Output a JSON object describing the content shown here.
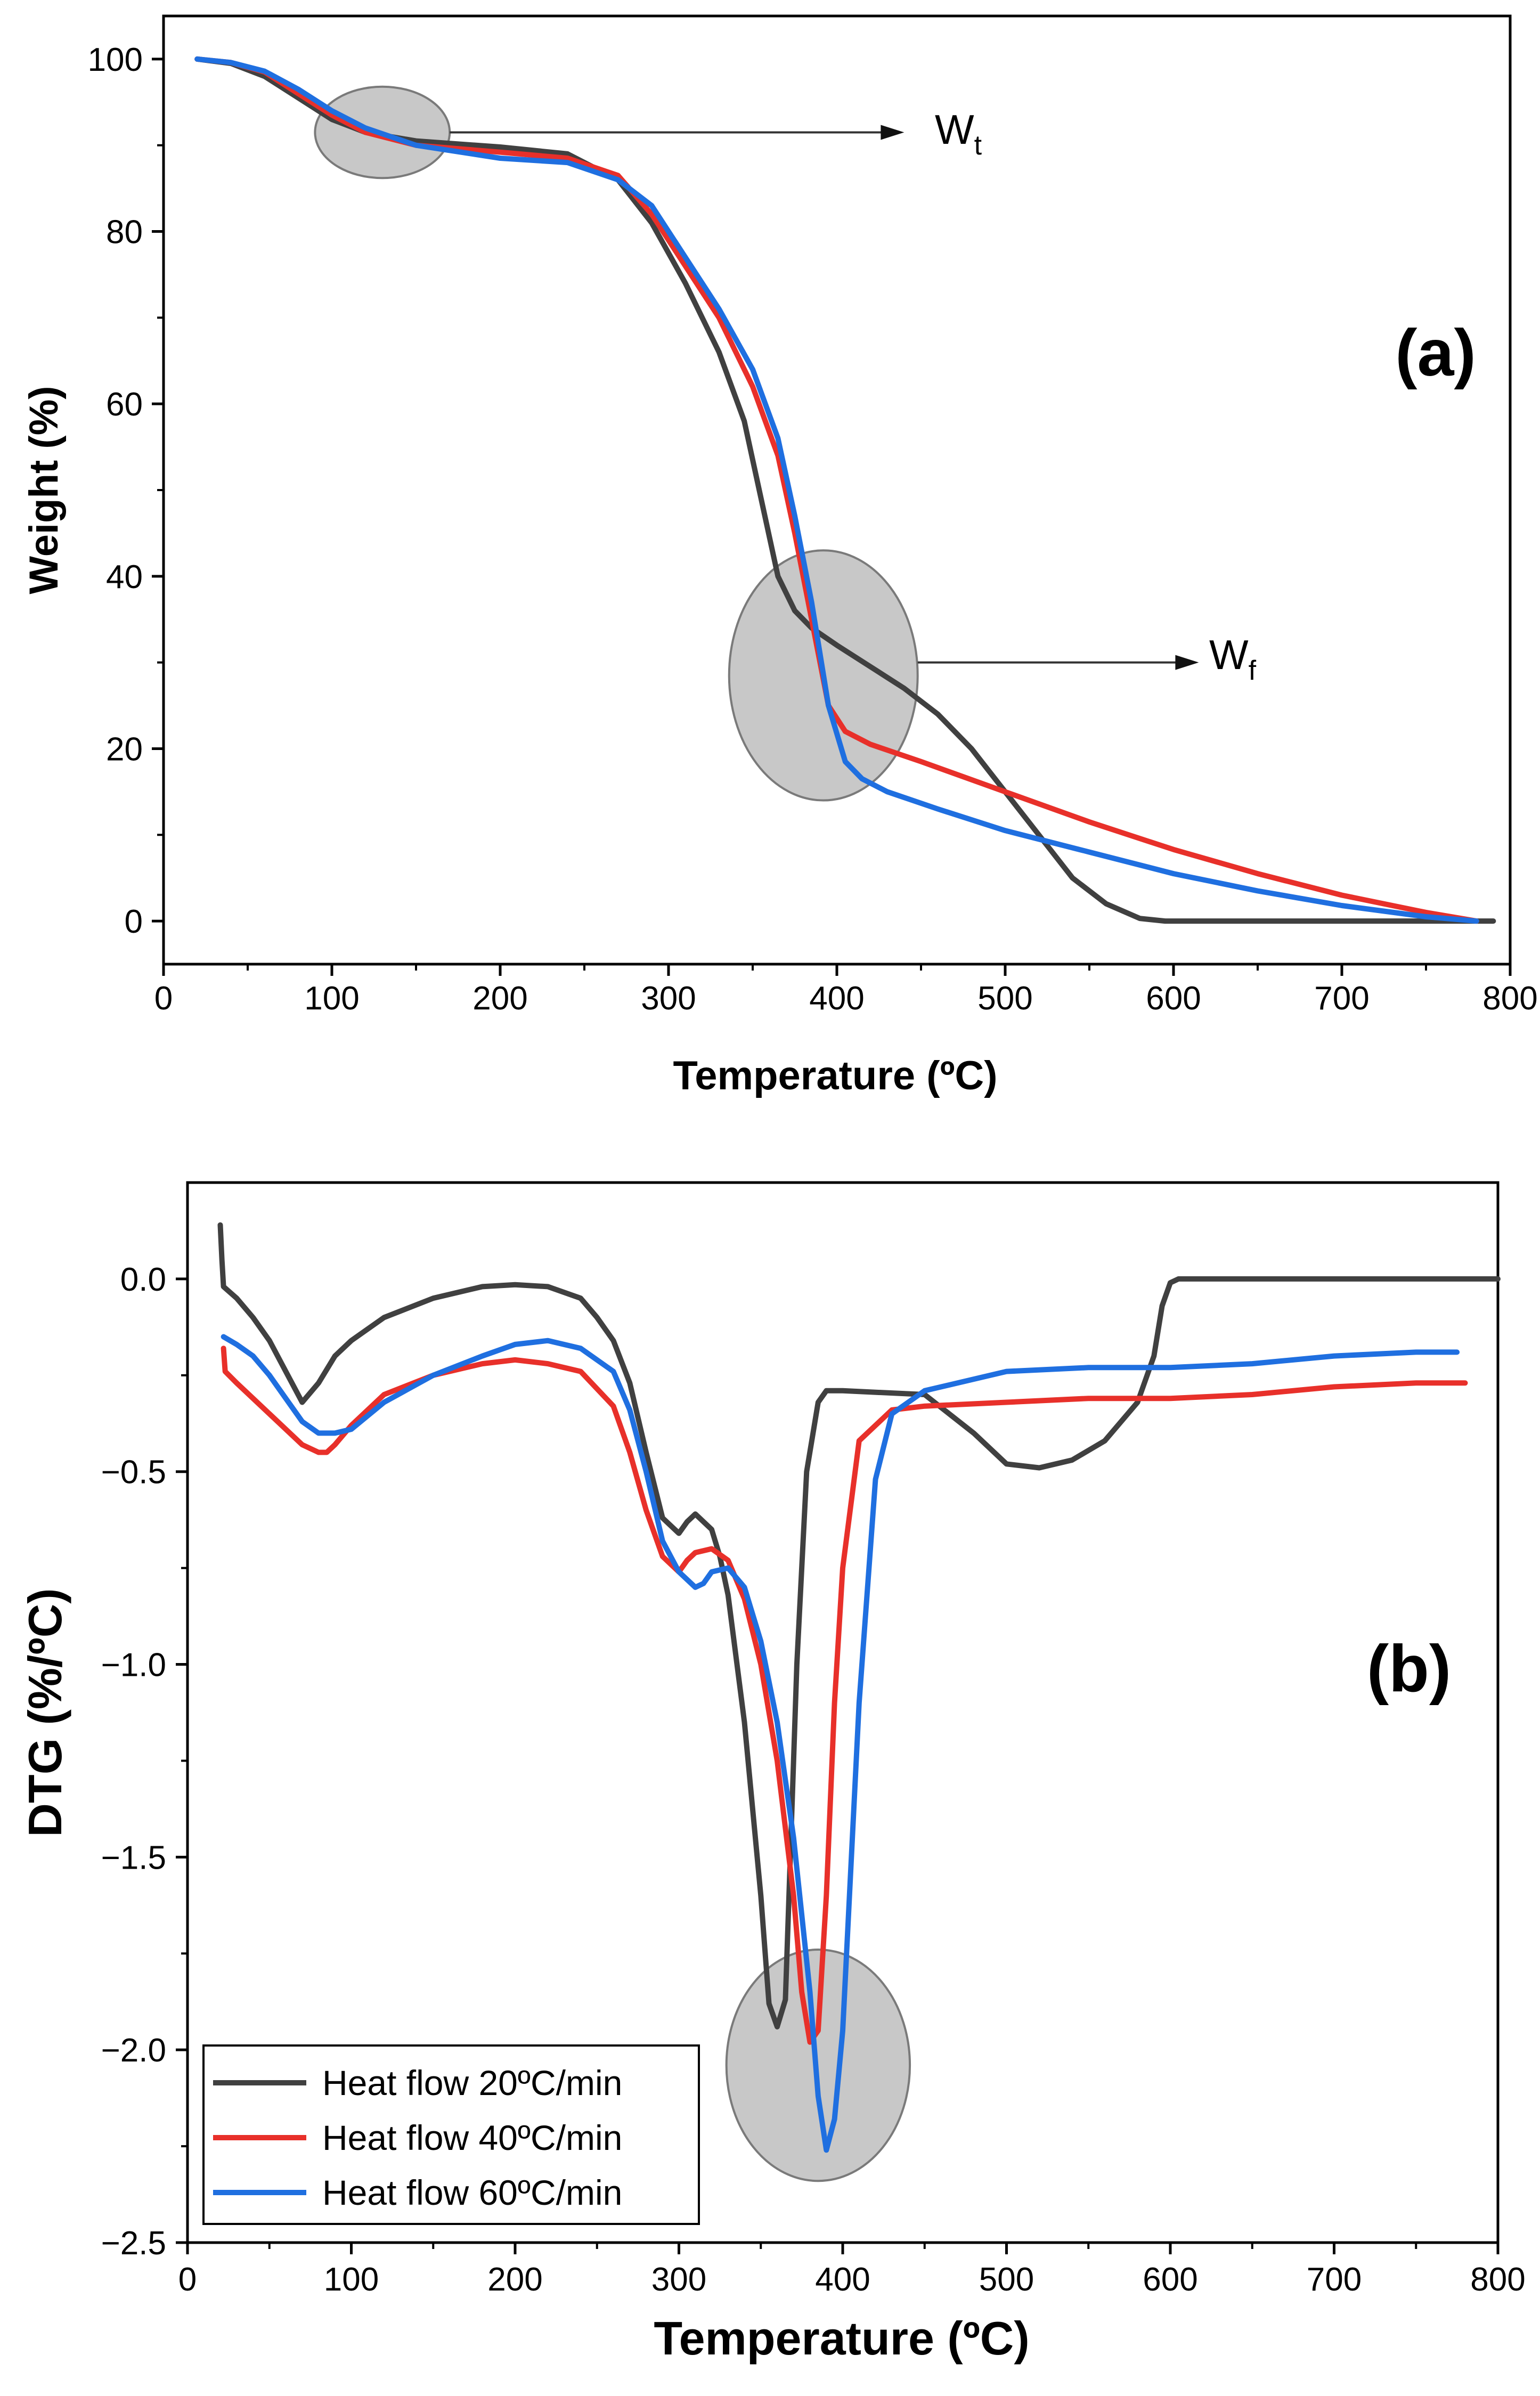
{
  "chart_data": [
    {
      "type": "line",
      "panel_label": "(a)",
      "xlabel": "Temperature (ºC)",
      "ylabel": "Weight (%)",
      "xlim": [
        0,
        800
      ],
      "ylim": [
        -5,
        105
      ],
      "xticks": [
        0,
        100,
        200,
        300,
        400,
        500,
        600,
        700,
        800
      ],
      "yticks": [
        0,
        20,
        40,
        60,
        80,
        100
      ],
      "grid": false,
      "annotations": [
        {
          "label": "W",
          "sub": "t",
          "ellipse_center": [
            130,
            91.5
          ],
          "ellipse_radii": [
            40,
            5.3
          ],
          "arrow_from": [
            170,
            91.5
          ],
          "arrow_to": [
            440,
            91.5
          ]
        },
        {
          "label": "W",
          "sub": "f",
          "ellipse_center": [
            392,
            28.5
          ],
          "ellipse_radii": [
            56,
            14.5
          ],
          "arrow_from": [
            448,
            30
          ],
          "arrow_to": [
            615,
            30
          ]
        }
      ],
      "series": [
        {
          "name": "Heat flow 20ºC/min",
          "color": "#404040",
          "x": [
            20,
            40,
            60,
            80,
            100,
            120,
            150,
            200,
            240,
            270,
            290,
            310,
            330,
            345,
            355,
            365,
            375,
            385,
            400,
            420,
            440,
            460,
            480,
            500,
            520,
            540,
            560,
            580,
            595,
            600,
            650,
            700,
            750,
            790
          ],
          "y": [
            100,
            99.5,
            98,
            95.5,
            93,
            91.5,
            90.5,
            89.8,
            89,
            86,
            81,
            74,
            66,
            58,
            49,
            40,
            36,
            34,
            32,
            29.5,
            27,
            24,
            20,
            15,
            10,
            5,
            2,
            0.3,
            0,
            0,
            0,
            0,
            0,
            0
          ]
        },
        {
          "name": "Heat flow 40ºC/min",
          "color": "#e8302a",
          "x": [
            20,
            40,
            60,
            80,
            100,
            120,
            150,
            200,
            240,
            270,
            290,
            310,
            330,
            350,
            365,
            375,
            385,
            395,
            405,
            420,
            450,
            500,
            550,
            600,
            650,
            700,
            750,
            780
          ],
          "y": [
            100,
            99.6,
            98.5,
            96,
            93.5,
            91.5,
            90,
            89.2,
            88.5,
            86.5,
            82,
            76,
            70,
            62,
            54,
            45,
            35,
            25,
            22,
            20.5,
            18.5,
            15,
            11.5,
            8.3,
            5.5,
            3,
            1,
            0
          ]
        },
        {
          "name": "Heat flow 60ºC/min",
          "color": "#1f6fe0",
          "x": [
            20,
            40,
            60,
            80,
            100,
            120,
            150,
            200,
            240,
            270,
            290,
            310,
            330,
            350,
            365,
            375,
            385,
            395,
            405,
            415,
            430,
            460,
            500,
            550,
            600,
            650,
            700,
            750,
            780
          ],
          "y": [
            100,
            99.6,
            98.6,
            96.5,
            94,
            92,
            90,
            88.5,
            88,
            86,
            83,
            77,
            71,
            64,
            56,
            47,
            37,
            25,
            18.5,
            16.5,
            15,
            13,
            10.5,
            8,
            5.5,
            3.5,
            1.8,
            0.5,
            0
          ]
        }
      ]
    },
    {
      "type": "line",
      "panel_label": "(b)",
      "xlabel": "Temperature (ºC)",
      "ylabel": "DTG (%/ºC)",
      "xlim": [
        0,
        800
      ],
      "ylim": [
        -2.5,
        0.25
      ],
      "xticks": [
        0,
        100,
        200,
        300,
        400,
        500,
        600,
        700,
        800
      ],
      "yticks": [
        0.0,
        -0.5,
        -1.0,
        -1.5,
        -2.0,
        -2.5
      ],
      "ytick_labels": [
        "0.0",
        "−0.5",
        "−1.0",
        "−1.5",
        "−2.0",
        "−2.5"
      ],
      "grid": false,
      "legend_position": "bottom-left",
      "annotations": [
        {
          "ellipse_center": [
            385,
            -2.04
          ],
          "ellipse_radii": [
            56,
            0.3
          ]
        }
      ],
      "series": [
        {
          "name": "Heat flow 20ºC/min",
          "color": "#404040",
          "x": [
            20,
            21,
            22,
            30,
            40,
            50,
            60,
            70,
            80,
            90,
            100,
            120,
            150,
            180,
            200,
            220,
            240,
            250,
            260,
            270,
            280,
            290,
            300,
            305,
            310,
            320,
            325,
            330,
            340,
            350,
            355,
            360,
            365,
            368,
            372,
            378,
            385,
            390,
            400,
            450,
            480,
            500,
            520,
            540,
            560,
            580,
            590,
            595,
            600,
            605,
            650,
            700,
            750,
            800
          ],
          "y": [
            0.14,
            0.05,
            -0.02,
            -0.05,
            -0.1,
            -0.16,
            -0.24,
            -0.32,
            -0.27,
            -0.2,
            -0.16,
            -0.1,
            -0.05,
            -0.02,
            -0.015,
            -0.02,
            -0.05,
            -0.1,
            -0.16,
            -0.27,
            -0.45,
            -0.62,
            -0.66,
            -0.63,
            -0.61,
            -0.65,
            -0.72,
            -0.82,
            -1.15,
            -1.6,
            -1.88,
            -1.94,
            -1.87,
            -1.5,
            -1.0,
            -0.5,
            -0.32,
            -0.29,
            -0.29,
            -0.3,
            -0.4,
            -0.48,
            -0.49,
            -0.47,
            -0.42,
            -0.32,
            -0.2,
            -0.07,
            -0.01,
            0.0,
            0.0,
            0.0,
            0.0,
            0.0
          ]
        },
        {
          "name": "Heat flow 40ºC/min",
          "color": "#e8302a",
          "x": [
            22,
            23,
            30,
            40,
            50,
            60,
            70,
            80,
            85,
            90,
            100,
            120,
            150,
            180,
            200,
            220,
            240,
            260,
            270,
            280,
            290,
            300,
            305,
            310,
            320,
            330,
            340,
            350,
            360,
            370,
            375,
            380,
            385,
            390,
            395,
            400,
            410,
            430,
            450,
            500,
            550,
            600,
            650,
            700,
            750,
            780
          ],
          "y": [
            -0.18,
            -0.24,
            -0.27,
            -0.31,
            -0.35,
            -0.39,
            -0.43,
            -0.45,
            -0.45,
            -0.43,
            -0.38,
            -0.3,
            -0.25,
            -0.22,
            -0.21,
            -0.22,
            -0.24,
            -0.33,
            -0.45,
            -0.6,
            -0.72,
            -0.76,
            -0.73,
            -0.71,
            -0.7,
            -0.73,
            -0.83,
            -1.0,
            -1.25,
            -1.6,
            -1.85,
            -1.98,
            -1.95,
            -1.6,
            -1.1,
            -0.75,
            -0.42,
            -0.34,
            -0.33,
            -0.32,
            -0.31,
            -0.31,
            -0.3,
            -0.28,
            -0.27,
            -0.27
          ]
        },
        {
          "name": "Heat flow 60ºC/min",
          "color": "#1f6fe0",
          "x": [
            22,
            30,
            40,
            50,
            60,
            70,
            80,
            90,
            100,
            120,
            150,
            180,
            200,
            220,
            240,
            260,
            270,
            280,
            290,
            300,
            310,
            315,
            320,
            330,
            340,
            350,
            360,
            370,
            380,
            385,
            390,
            395,
            400,
            410,
            420,
            430,
            450,
            500,
            550,
            600,
            650,
            700,
            750,
            775
          ],
          "y": [
            -0.15,
            -0.17,
            -0.2,
            -0.25,
            -0.31,
            -0.37,
            -0.4,
            -0.4,
            -0.39,
            -0.32,
            -0.25,
            -0.2,
            -0.17,
            -0.16,
            -0.18,
            -0.24,
            -0.34,
            -0.5,
            -0.68,
            -0.76,
            -0.8,
            -0.79,
            -0.76,
            -0.75,
            -0.8,
            -0.94,
            -1.15,
            -1.45,
            -1.85,
            -2.12,
            -2.26,
            -2.18,
            -1.95,
            -1.1,
            -0.52,
            -0.35,
            -0.29,
            -0.24,
            -0.23,
            -0.23,
            -0.22,
            -0.2,
            -0.19,
            -0.19
          ]
        }
      ]
    }
  ]
}
